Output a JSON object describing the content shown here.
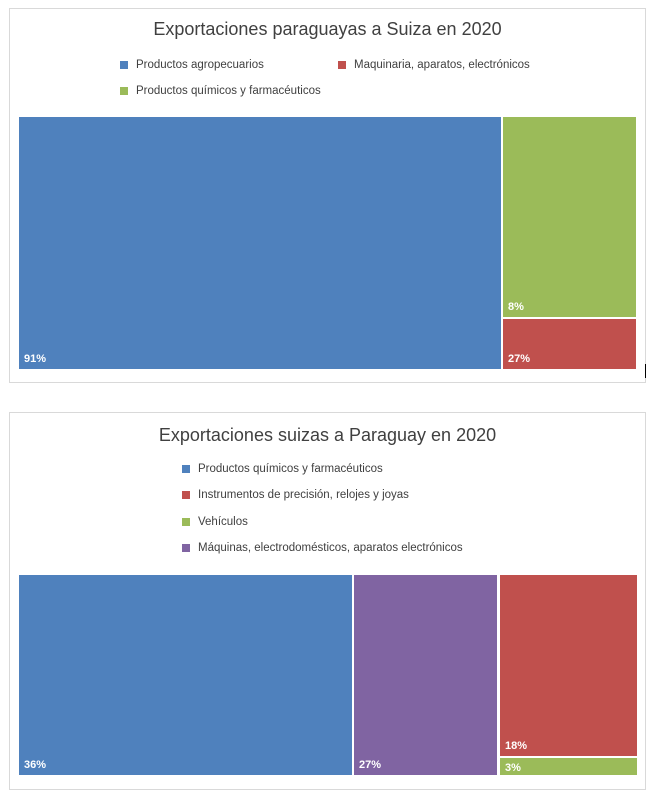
{
  "chart_data": [
    {
      "type": "treemap",
      "title": "Exportaciones paraguayas a Suiza en 2020",
      "series": [
        {
          "name": "Productos agropecuarios",
          "value": 91,
          "label": "91%",
          "color": "#4f81bd"
        },
        {
          "name": "Maquinaria, aparatos, electrónicos",
          "value": 27,
          "label": "27%",
          "color": "#c0504d"
        },
        {
          "name": "Productos químicos y farmacéuticos",
          "value": 8,
          "label": "8%",
          "color": "#9bbb59"
        }
      ]
    },
    {
      "type": "treemap",
      "title": "Exportaciones suizas a Paraguay en 2020",
      "series": [
        {
          "name": "Productos químicos y farmacéuticos",
          "value": 36,
          "label": "36%",
          "color": "#4f81bd"
        },
        {
          "name": "Instrumentos de precisión, relojes y joyas",
          "value": 18,
          "label": "18%",
          "color": "#c0504d"
        },
        {
          "name": "Vehículos",
          "value": 3,
          "label": "3%",
          "color": "#9bbb59"
        },
        {
          "name": "Máquinas, electrodomésticos, aparatos electrónicos",
          "value": 27,
          "label": "27%",
          "color": "#8064a2"
        }
      ]
    }
  ]
}
